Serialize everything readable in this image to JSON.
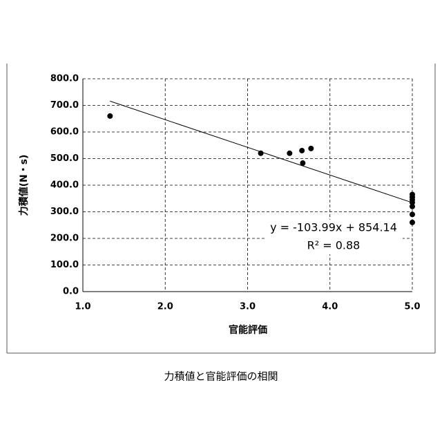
{
  "chart_data": {
    "type": "scatter",
    "x_label": "官能評価",
    "y_label": "力積値(N・s)",
    "caption": "力積値と官能評価の相関",
    "color": "#000000",
    "x": [
      1.33,
      3.16,
      3.51,
      3.66,
      3.77,
      3.67,
      5.0,
      5.0,
      5.0,
      5.0,
      5.0,
      5.0,
      5.0
    ],
    "values": [
      660,
      520,
      520,
      530,
      538,
      483,
      365,
      355,
      345,
      335,
      320,
      290,
      260
    ],
    "xlim": [
      1.0,
      5.0
    ],
    "ylim": [
      0,
      800
    ],
    "xticks": [
      {
        "value": 1,
        "label": "1.0"
      },
      {
        "value": 2,
        "label": "2.0"
      },
      {
        "value": 3,
        "label": "3.0"
      },
      {
        "value": 4,
        "label": "4.0"
      },
      {
        "value": 5,
        "label": "5.0"
      }
    ],
    "yticks": [
      {
        "value": 0,
        "label": "0.0"
      },
      {
        "value": 100,
        "label": "100.0"
      },
      {
        "value": 200,
        "label": "200.0"
      },
      {
        "value": 300,
        "label": "300.0"
      },
      {
        "value": 400,
        "label": "400.0"
      },
      {
        "value": 500,
        "label": "500.0"
      },
      {
        "value": 600,
        "label": "600.0"
      },
      {
        "value": 700,
        "label": "700.0"
      },
      {
        "value": 800,
        "label": "800.0"
      }
    ],
    "grid": true,
    "trendline": {
      "slope": -103.99,
      "intercept": 854.14,
      "label": "y = -103.99x + 854.14",
      "r2_label": "R² = 0.88"
    }
  }
}
